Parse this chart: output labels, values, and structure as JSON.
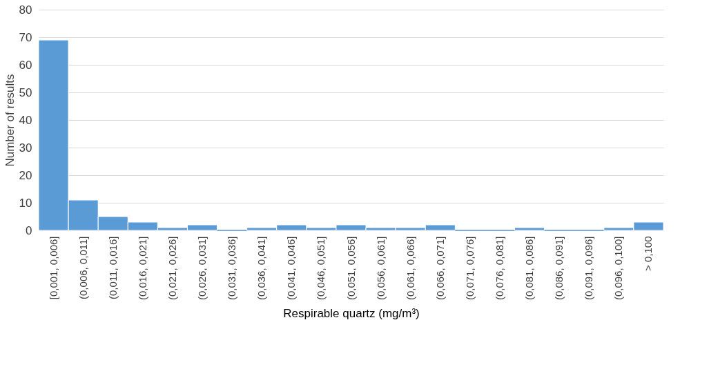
{
  "chart_data": {
    "type": "bar",
    "xlabel": "Respirable quartz (mg/m³)",
    "ylabel": "Number of results",
    "categories": [
      "[0,001, 0,006]",
      "(0,006, 0,011]",
      "(0,011, 0,016]",
      "(0,016, 0,021]",
      "(0,021, 0,026]",
      "(0,026, 0,031]",
      "(0,031, 0,036]",
      "(0,036, 0,041]",
      "(0,041, 0,046]",
      "(0,046, 0,051]",
      "(0,051, 0,056]",
      "(0,056, 0,061]",
      "(0,061, 0,066]",
      "(0,066, 0,071]",
      "(0,071, 0,076]",
      "(0,076, 0,081]",
      "(0,081, 0,086]",
      "(0,086, 0,091]",
      "(0,091, 0,096]",
      "(0,096, 0,100]",
      "> 0,100"
    ],
    "values": [
      69,
      11,
      5,
      3,
      1,
      2,
      0,
      1,
      2,
      1,
      2,
      1,
      1,
      2,
      0,
      0,
      1,
      0,
      0,
      1,
      3
    ],
    "color": "#5b9bd5",
    "ylim": [
      0,
      80
    ],
    "yticks": [
      0,
      10,
      20,
      30,
      40,
      50,
      60,
      70,
      80
    ],
    "grid": "y"
  }
}
